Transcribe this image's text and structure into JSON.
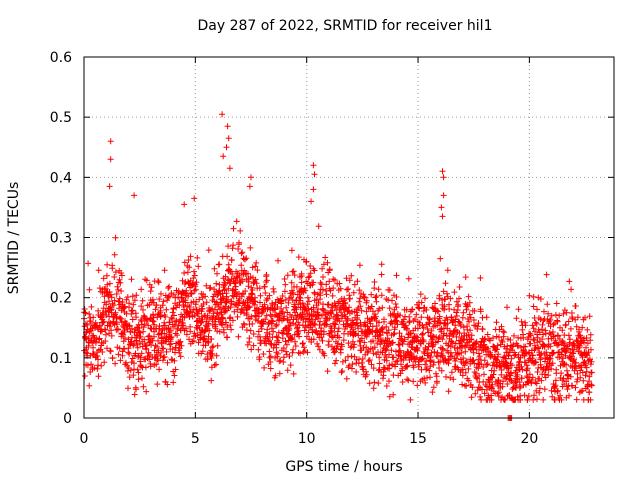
{
  "chart_data": {
    "type": "scatter",
    "title": "Day 287 of 2022, SRMTID for receiver hil1",
    "xlabel": "GPS time / hours",
    "ylabel": "SRMTID / TECUs",
    "xlim": [
      0,
      23.8
    ],
    "ylim": [
      0,
      0.6
    ],
    "xticks": [
      0,
      5,
      10,
      15,
      20
    ],
    "yticks": [
      0,
      0.1,
      0.2,
      0.3,
      0.4,
      0.5,
      0.6
    ],
    "xtick_labels": [
      "0",
      "5",
      "10",
      "15",
      "20"
    ],
    "ytick_labels": [
      "0",
      "0.1",
      "0.2",
      "0.3",
      "0.4",
      "0.5",
      "0.6"
    ],
    "grid": true,
    "marker": "plus",
    "color": "#ff0000",
    "x_step_hours": 0.02,
    "x_end_hours": 22.8,
    "trend": {
      "x": [
        0,
        0.5,
        1,
        1.5,
        2,
        2.5,
        3,
        3.5,
        4,
        4.5,
        5,
        5.5,
        6,
        6.5,
        7,
        7.5,
        8,
        8.5,
        9,
        9.5,
        10,
        10.5,
        11,
        11.5,
        12,
        12.5,
        13,
        13.5,
        14,
        14.5,
        15,
        15.5,
        16,
        16.5,
        17,
        17.5,
        18,
        18.5,
        19,
        19.5,
        20,
        20.5,
        21,
        21.5,
        22,
        22.5,
        22.8
      ],
      "y": [
        0.12,
        0.13,
        0.19,
        0.17,
        0.14,
        0.13,
        0.14,
        0.15,
        0.13,
        0.19,
        0.2,
        0.13,
        0.18,
        0.21,
        0.22,
        0.19,
        0.17,
        0.15,
        0.14,
        0.17,
        0.19,
        0.18,
        0.17,
        0.16,
        0.15,
        0.14,
        0.14,
        0.13,
        0.13,
        0.12,
        0.13,
        0.12,
        0.14,
        0.13,
        0.12,
        0.11,
        0.1,
        0.09,
        0.08,
        0.09,
        0.1,
        0.11,
        0.1,
        0.1,
        0.11,
        0.09,
        0.08
      ]
    },
    "spikes": [
      {
        "x": 1.2,
        "y": 0.46
      },
      {
        "x": 1.2,
        "y": 0.43
      },
      {
        "x": 1.15,
        "y": 0.385
      },
      {
        "x": 2.25,
        "y": 0.37
      },
      {
        "x": 4.5,
        "y": 0.355
      },
      {
        "x": 4.95,
        "y": 0.365
      },
      {
        "x": 6.2,
        "y": 0.505
      },
      {
        "x": 6.45,
        "y": 0.485
      },
      {
        "x": 6.5,
        "y": 0.465
      },
      {
        "x": 6.4,
        "y": 0.45
      },
      {
        "x": 6.25,
        "y": 0.435
      },
      {
        "x": 6.55,
        "y": 0.415
      },
      {
        "x": 7.5,
        "y": 0.4
      },
      {
        "x": 7.45,
        "y": 0.385
      },
      {
        "x": 10.3,
        "y": 0.42
      },
      {
        "x": 10.35,
        "y": 0.405
      },
      {
        "x": 10.3,
        "y": 0.38
      },
      {
        "x": 10.2,
        "y": 0.36
      },
      {
        "x": 16.1,
        "y": 0.41
      },
      {
        "x": 16.15,
        "y": 0.4
      },
      {
        "x": 16.15,
        "y": 0.37
      },
      {
        "x": 16.05,
        "y": 0.35
      },
      {
        "x": 16.1,
        "y": 0.335
      },
      {
        "x": 18.2,
        "y": 0.05
      },
      {
        "x": 19.05,
        "y": 0.0
      },
      {
        "x": 19.1,
        "y": 0.0
      },
      {
        "x": 19.15,
        "y": 0.0
      },
      {
        "x": 19.2,
        "y": 0.0
      }
    ]
  }
}
